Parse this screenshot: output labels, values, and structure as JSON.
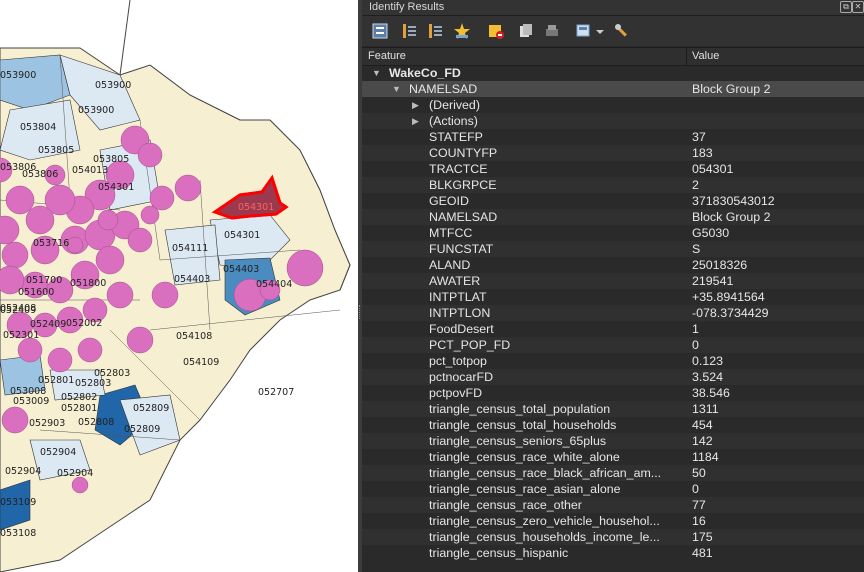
{
  "window": {
    "title": "Identify Results"
  },
  "toolbar": {
    "icons": [
      "expand-tree-icon",
      "collapse-tree-icon",
      "expand-new-icon",
      "highlight-icon",
      "clear-results-icon",
      "copy-icon",
      "print-icon",
      "select-mode-icon",
      "settings-icon"
    ]
  },
  "table": {
    "col_feature": "Feature",
    "col_value": "Value"
  },
  "layer": {
    "name": "WakeCo_FD"
  },
  "feature": {
    "field": "NAMELSAD",
    "value": "Block Group 2"
  },
  "tree_items": [
    {
      "label": "(Derived)"
    },
    {
      "label": "(Actions)"
    }
  ],
  "attributes": [
    {
      "field": "STATEFP",
      "value": "37"
    },
    {
      "field": "COUNTYFP",
      "value": "183"
    },
    {
      "field": "TRACTCE",
      "value": "054301"
    },
    {
      "field": "BLKGRPCE",
      "value": "2"
    },
    {
      "field": "GEOID",
      "value": "371830543012"
    },
    {
      "field": "NAMELSAD",
      "value": "Block Group 2"
    },
    {
      "field": "MTFCC",
      "value": "G5030"
    },
    {
      "field": "FUNCSTAT",
      "value": "S"
    },
    {
      "field": "ALAND",
      "value": "25018326"
    },
    {
      "field": "AWATER",
      "value": "219541"
    },
    {
      "field": "INTPTLAT",
      "value": "+35.8941564"
    },
    {
      "field": "INTPTLON",
      "value": "-078.3734429"
    },
    {
      "field": "FoodDesert",
      "value": "1"
    },
    {
      "field": "PCT_POP_FD",
      "value": "0"
    },
    {
      "field": "pct_totpop",
      "value": "0.123"
    },
    {
      "field": "pctnocarFD",
      "value": "3.524"
    },
    {
      "field": "pctpovFD",
      "value": "38.546"
    },
    {
      "field": "triangle_census_total_population",
      "value": "1311"
    },
    {
      "field": "triangle_census_total_households",
      "value": "454"
    },
    {
      "field": "triangle_census_seniors_65plus",
      "value": "142"
    },
    {
      "field": "triangle_census_race_white_alone",
      "value": "1184"
    },
    {
      "field": "triangle_census_race_black_african_am...",
      "value": "50"
    },
    {
      "field": "triangle_census_race_asian_alone",
      "value": "0"
    },
    {
      "field": "triangle_census_race_other",
      "value": "77"
    },
    {
      "field": "triangle_census_zero_vehicle_househol...",
      "value": "16"
    },
    {
      "field": "triangle_census_households_income_le...",
      "value": "175"
    },
    {
      "field": "triangle_census_hispanic",
      "value": "481"
    }
  ],
  "map": {
    "labels": [
      "053900",
      "053900",
      "053900",
      "053804",
      "053805",
      "053805",
      "053806",
      "053806",
      "054013",
      "054301",
      "054301",
      "054111",
      "054403",
      "054403",
      "054404",
      "053716",
      "051700",
      "051800",
      "051600",
      "052409",
      "052409",
      "052002",
      "052408",
      "052301",
      "054108",
      "054109",
      "052803",
      "052803",
      "052801",
      "052802",
      "053008",
      "053009",
      "052801",
      "052809",
      "052809",
      "052808",
      "052903",
      "052904",
      "052904",
      "052904",
      "053109",
      "053108",
      "052707"
    ],
    "selected_label": "054301",
    "colors": {
      "base": "#f7efd2",
      "light": "#dce8f2",
      "mid": "#9cc3e2",
      "dark": "#4a8cc0",
      "navy": "#2166a8",
      "pink": "#d96fbe",
      "selected": "#9b3a4e",
      "highlight": "#ff0000"
    }
  },
  "colors": {
    "panel_bg": "#2a2a2a",
    "selected_row": "#4a4a4a",
    "text": "#e6e6e6"
  }
}
